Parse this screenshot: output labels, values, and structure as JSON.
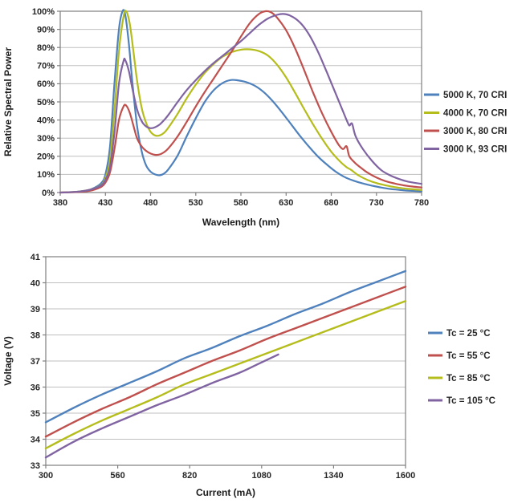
{
  "page": {
    "background": "#ffffff"
  },
  "colors": {
    "grid": "#bfbfbf",
    "plot_border": "#7f7f7f",
    "tick_text": "#262626",
    "axis_title_text": "#1a1a1a",
    "series_blue": "#4f81bd",
    "series_red": "#c0504d",
    "series_yellow": "#b5bd1c",
    "series_purple": "#8064a2"
  },
  "chart_data": [
    {
      "type": "line",
      "title": "",
      "xlabel": "Wavelength (nm)",
      "ylabel": "Relative Spectral Power",
      "xlim": [
        380,
        780
      ],
      "xticks": [
        380,
        430,
        480,
        530,
        580,
        630,
        680,
        730,
        780
      ],
      "ylim": [
        0,
        100
      ],
      "yticks": [
        0,
        10,
        20,
        30,
        40,
        50,
        60,
        70,
        80,
        90,
        100
      ],
      "ytick_suffix": "%",
      "grid": "horizontal",
      "legend_position": "right",
      "series": [
        {
          "name": "5000 K, 70 CRI",
          "color": "#4f81bd",
          "points": [
            [
              380,
              0
            ],
            [
              395,
              0.3
            ],
            [
              405,
              0.8
            ],
            [
              415,
              2
            ],
            [
              425,
              5
            ],
            [
              430,
              10
            ],
            [
              435,
              25
            ],
            [
              440,
              60
            ],
            [
              445,
              90
            ],
            [
              449,
              100
            ],
            [
              452,
              98
            ],
            [
              456,
              82
            ],
            [
              460,
              60
            ],
            [
              465,
              37
            ],
            [
              470,
              23
            ],
            [
              475,
              15
            ],
            [
              480,
              11.5
            ],
            [
              485,
              10
            ],
            [
              490,
              9.5
            ],
            [
              495,
              10.5
            ],
            [
              500,
              13
            ],
            [
              510,
              20.5
            ],
            [
              520,
              31
            ],
            [
              530,
              41
            ],
            [
              540,
              50
            ],
            [
              550,
              56.5
            ],
            [
              560,
              60.5
            ],
            [
              568,
              62
            ],
            [
              575,
              62
            ],
            [
              585,
              61
            ],
            [
              595,
              59
            ],
            [
              605,
              55.5
            ],
            [
              615,
              50.5
            ],
            [
              625,
              44.5
            ],
            [
              635,
              38
            ],
            [
              645,
              31.5
            ],
            [
              655,
              25.5
            ],
            [
              665,
              20
            ],
            [
              675,
              15.5
            ],
            [
              685,
              11.5
            ],
            [
              695,
              8.5
            ],
            [
              705,
              6.5
            ],
            [
              715,
              5
            ],
            [
              725,
              3.8
            ],
            [
              735,
              2.8
            ],
            [
              745,
              2
            ],
            [
              755,
              1.5
            ],
            [
              765,
              1
            ],
            [
              780,
              0.7
            ]
          ]
        },
        {
          "name": "4000 K, 70 CRI",
          "color": "#b5bd1c",
          "points": [
            [
              380,
              0
            ],
            [
              395,
              0.3
            ],
            [
              405,
              0.8
            ],
            [
              415,
              1.8
            ],
            [
              425,
              4
            ],
            [
              430,
              8
            ],
            [
              435,
              18
            ],
            [
              440,
              45
            ],
            [
              445,
              78
            ],
            [
              450,
              97
            ],
            [
              453,
              100
            ],
            [
              457,
              93
            ],
            [
              461,
              78
            ],
            [
              465,
              62
            ],
            [
              470,
              47
            ],
            [
              475,
              38.5
            ],
            [
              480,
              33.5
            ],
            [
              485,
              31.5
            ],
            [
              490,
              31.5
            ],
            [
              495,
              33
            ],
            [
              500,
              36
            ],
            [
              510,
              43.5
            ],
            [
              520,
              52
            ],
            [
              530,
              59.5
            ],
            [
              540,
              66
            ],
            [
              550,
              71
            ],
            [
              560,
              75
            ],
            [
              570,
              77.5
            ],
            [
              580,
              78.8
            ],
            [
              590,
              79
            ],
            [
              600,
              78
            ],
            [
              610,
              75.5
            ],
            [
              620,
              70.5
            ],
            [
              630,
              63.5
            ],
            [
              640,
              55
            ],
            [
              650,
              46
            ],
            [
              660,
              37.5
            ],
            [
              670,
              29.5
            ],
            [
              680,
              22.5
            ],
            [
              690,
              17
            ],
            [
              697,
              14
            ],
            [
              702,
              12.5
            ],
            [
              710,
              9.5
            ],
            [
              720,
              7
            ],
            [
              730,
              5.2
            ],
            [
              740,
              4
            ],
            [
              750,
              3
            ],
            [
              760,
              2.3
            ],
            [
              770,
              1.8
            ],
            [
              780,
              1.4
            ]
          ]
        },
        {
          "name": "3000 K, 80 CRI",
          "color": "#c0504d",
          "points": [
            [
              380,
              0
            ],
            [
              395,
              0.2
            ],
            [
              405,
              0.5
            ],
            [
              415,
              1.2
            ],
            [
              425,
              3
            ],
            [
              430,
              5.5
            ],
            [
              435,
              11
            ],
            [
              440,
              24
            ],
            [
              445,
              40
            ],
            [
              450,
              47.5
            ],
            [
              453,
              48
            ],
            [
              457,
              44
            ],
            [
              461,
              37
            ],
            [
              465,
              30
            ],
            [
              470,
              25.5
            ],
            [
              475,
              23
            ],
            [
              480,
              21.5
            ],
            [
              485,
              20.8
            ],
            [
              490,
              21
            ],
            [
              495,
              22.3
            ],
            [
              500,
              24.5
            ],
            [
              510,
              31
            ],
            [
              520,
              39
            ],
            [
              530,
              47.5
            ],
            [
              540,
              55.5
            ],
            [
              550,
              63
            ],
            [
              560,
              70.5
            ],
            [
              570,
              78
            ],
            [
              580,
              86
            ],
            [
              590,
              93.5
            ],
            [
              600,
              98.5
            ],
            [
              607,
              100
            ],
            [
              613,
              99.5
            ],
            [
              620,
              96.5
            ],
            [
              630,
              89.5
            ],
            [
              640,
              79.5
            ],
            [
              650,
              67.5
            ],
            [
              660,
              55
            ],
            [
              670,
              43.5
            ],
            [
              680,
              33.5
            ],
            [
              688,
              26.5
            ],
            [
              693,
              24
            ],
            [
              697,
              25.5
            ],
            [
              700,
              20
            ],
            [
              706,
              16.5
            ],
            [
              712,
              14
            ],
            [
              720,
              11
            ],
            [
              730,
              8.3
            ],
            [
              740,
              6.3
            ],
            [
              750,
              5
            ],
            [
              760,
              4
            ],
            [
              770,
              3.3
            ],
            [
              780,
              2.8
            ]
          ]
        },
        {
          "name": "3000 K, 93 CRI",
          "color": "#8064a2",
          "points": [
            [
              380,
              0
            ],
            [
              395,
              0.3
            ],
            [
              405,
              0.8
            ],
            [
              415,
              1.8
            ],
            [
              425,
              3.8
            ],
            [
              430,
              7
            ],
            [
              435,
              14
            ],
            [
              440,
              33
            ],
            [
              445,
              60
            ],
            [
              450,
              72.5
            ],
            [
              452,
              73
            ],
            [
              456,
              67
            ],
            [
              460,
              57
            ],
            [
              465,
              46
            ],
            [
              470,
              39.5
            ],
            [
              475,
              36.5
            ],
            [
              480,
              35.5
            ],
            [
              485,
              36
            ],
            [
              490,
              37.5
            ],
            [
              495,
              40
            ],
            [
              500,
              43
            ],
            [
              510,
              50
            ],
            [
              520,
              56.5
            ],
            [
              530,
              62
            ],
            [
              540,
              67
            ],
            [
              550,
              71.5
            ],
            [
              560,
              75.5
            ],
            [
              570,
              79.5
            ],
            [
              580,
              83.5
            ],
            [
              590,
              88
            ],
            [
              600,
              92.5
            ],
            [
              610,
              96
            ],
            [
              620,
              98
            ],
            [
              627,
              98.5
            ],
            [
              635,
              97.5
            ],
            [
              645,
              94
            ],
            [
              655,
              87.5
            ],
            [
              665,
              78
            ],
            [
              675,
              66.5
            ],
            [
              685,
              54.5
            ],
            [
              692,
              46
            ],
            [
              697,
              40
            ],
            [
              700,
              37
            ],
            [
              703,
              38
            ],
            [
              707,
              31
            ],
            [
              715,
              24
            ],
            [
              725,
              17.5
            ],
            [
              735,
              12.5
            ],
            [
              745,
              9.5
            ],
            [
              755,
              7.5
            ],
            [
              765,
              6
            ],
            [
              780,
              4.8
            ]
          ]
        }
      ]
    },
    {
      "type": "line",
      "title": "",
      "xlabel": "Current (mA)",
      "ylabel": "Voltage (V)",
      "xlim": [
        300,
        1600
      ],
      "xticks": [
        300,
        560,
        820,
        1080,
        1340,
        1600
      ],
      "ylim": [
        33,
        41
      ],
      "yticks": [
        33,
        34,
        35,
        36,
        37,
        38,
        39,
        40,
        41
      ],
      "ytick_suffix": "",
      "grid": "horizontal",
      "legend_position": "right",
      "series": [
        {
          "name": "Tc = 25 °C",
          "color": "#4f81bd",
          "points": [
            [
              300,
              34.65
            ],
            [
              400,
              35.2
            ],
            [
              500,
              35.7
            ],
            [
              600,
              36.15
            ],
            [
              700,
              36.6
            ],
            [
              800,
              37.1
            ],
            [
              900,
              37.5
            ],
            [
              1000,
              37.95
            ],
            [
              1100,
              38.35
            ],
            [
              1200,
              38.8
            ],
            [
              1300,
              39.2
            ],
            [
              1400,
              39.65
            ],
            [
              1500,
              40.05
            ],
            [
              1600,
              40.45
            ]
          ]
        },
        {
          "name": "Tc = 55 °C",
          "color": "#c0504d",
          "points": [
            [
              300,
              34.1
            ],
            [
              400,
              34.65
            ],
            [
              500,
              35.15
            ],
            [
              600,
              35.6
            ],
            [
              700,
              36.1
            ],
            [
              800,
              36.55
            ],
            [
              900,
              37.0
            ],
            [
              1000,
              37.4
            ],
            [
              1100,
              37.85
            ],
            [
              1200,
              38.25
            ],
            [
              1300,
              38.65
            ],
            [
              1400,
              39.05
            ],
            [
              1500,
              39.45
            ],
            [
              1600,
              39.85
            ]
          ]
        },
        {
          "name": "Tc = 85 °C",
          "color": "#b5bd1c",
          "points": [
            [
              300,
              33.65
            ],
            [
              400,
              34.2
            ],
            [
              500,
              34.7
            ],
            [
              600,
              35.15
            ],
            [
              700,
              35.6
            ],
            [
              800,
              36.1
            ],
            [
              900,
              36.5
            ],
            [
              1000,
              36.9
            ],
            [
              1100,
              37.3
            ],
            [
              1200,
              37.7
            ],
            [
              1300,
              38.1
            ],
            [
              1400,
              38.5
            ],
            [
              1500,
              38.9
            ],
            [
              1600,
              39.3
            ]
          ]
        },
        {
          "name": "Tc = 105 °C",
          "color": "#8064a2",
          "points": [
            [
              300,
              33.3
            ],
            [
              400,
              33.9
            ],
            [
              500,
              34.4
            ],
            [
              600,
              34.85
            ],
            [
              700,
              35.3
            ],
            [
              800,
              35.7
            ],
            [
              900,
              36.15
            ],
            [
              1000,
              36.55
            ],
            [
              1070,
              36.9
            ],
            [
              1140,
              37.25
            ]
          ]
        }
      ]
    }
  ]
}
